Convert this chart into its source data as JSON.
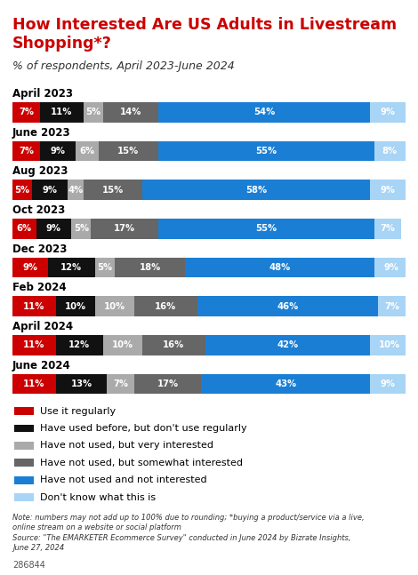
{
  "title": "How Interested Are US Adults in Livestream\nShopping*?",
  "subtitle": "% of respondents, April 2023-June 2024",
  "categories": [
    "April 2023",
    "June 2023",
    "Aug 2023",
    "Oct 2023",
    "Dec 2023",
    "Feb 2024",
    "April 2024",
    "June 2024"
  ],
  "segments": {
    "Use it regularly": [
      7,
      7,
      5,
      6,
      9,
      11,
      11,
      11
    ],
    "Have used before, but don't use regularly": [
      11,
      9,
      9,
      9,
      12,
      10,
      12,
      13
    ],
    "Have not used, but very interested": [
      5,
      6,
      4,
      5,
      5,
      10,
      10,
      7
    ],
    "Have not used, but somewhat interested": [
      14,
      15,
      15,
      17,
      18,
      16,
      16,
      17
    ],
    "Have not used and not interested": [
      54,
      55,
      58,
      55,
      48,
      46,
      42,
      43
    ],
    "Don't know what this is": [
      9,
      8,
      9,
      7,
      9,
      7,
      10,
      9
    ]
  },
  "colors": {
    "Use it regularly": "#cc0000",
    "Have used before, but don't use regularly": "#111111",
    "Have not used, but very interested": "#aaaaaa",
    "Have not used, but somewhat interested": "#666666",
    "Have not used and not interested": "#1a7fd4",
    "Don't know what this is": "#a8d4f5"
  },
  "note1": "Note: numbers may not add up to 100% due to rounding; *buying a product/service via a live,",
  "note2": "online stream on a website or social platform",
  "note3": "Source: \"The EMARKETER Ecommerce Survey\" conducted in June 2024 by Bizrate Insights,",
  "note4": "June 27, 2024",
  "source_id": "286844",
  "title_color": "#cc0000",
  "subtitle_color": "#333333",
  "background_color": "#ffffff"
}
